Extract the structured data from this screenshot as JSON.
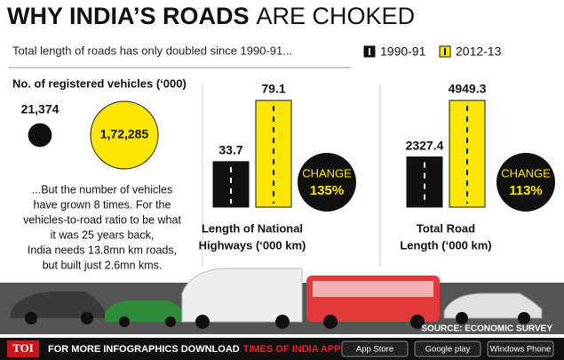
{
  "header": {
    "title_bold": "WHY INDIA’S ROADS",
    "title_light": "ARE CHOKED"
  },
  "subtitle": "Total length of roads has only doubled since 1990-91...",
  "legend": [
    {
      "label": "1990-91",
      "color": "#111111"
    },
    {
      "label": "2012-13",
      "color": "#ffe600"
    }
  ],
  "vehicles": {
    "title": "No. of registered vehicles (‘000)",
    "items": [
      {
        "value": 21374,
        "label": "21,374",
        "color": "#111111"
      },
      {
        "value": 172285,
        "label": "1,72,285",
        "color": "#ffe600"
      }
    ]
  },
  "note": [
    "...But the number of vehicles",
    "have grown 8 times. For the",
    "vehicles-to-road ratio to be what",
    "it was 25 years back,",
    "India needs 13.8mn km roads,",
    "but built just 2.6mn kms."
  ],
  "highways": {
    "values": [
      33.7,
      79.1
    ],
    "label_lines": [
      "Length of National",
      "Highways (‘000 km)"
    ],
    "change_title": "CHANGE",
    "change": "135%"
  },
  "roads": {
    "values": [
      2327.4,
      4949.3
    ],
    "label_lines": [
      "Total Road",
      "Length  (‘000 km)"
    ],
    "change_title": "CHANGE",
    "change": "113%"
  },
  "footer": {
    "source": "SOURCE: ECONOMIC SURVEY",
    "brand": "TOI",
    "text": "FOR MORE  INFOGRAPHICS DOWNLOAD",
    "app": "TIMES OF INDIA APP",
    "stores": [
      "App Store",
      "Google play",
      "Windows Phone"
    ]
  }
}
